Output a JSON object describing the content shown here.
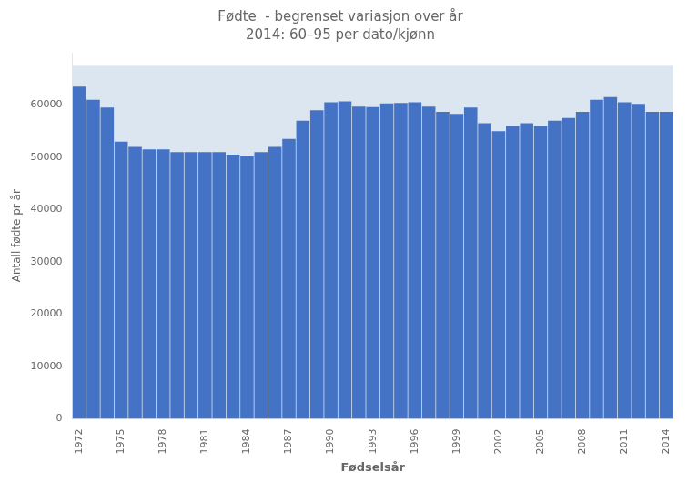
{
  "chart_data": {
    "type": "bar",
    "title": "Fødte  - begrenset variasjon over år",
    "subtitle": "2014: 60–95 per dato/kjønn",
    "x_label": "Fødselsår",
    "y_label": "Antall fødte pr år",
    "categories": [
      "1972",
      null,
      null,
      "1975",
      null,
      null,
      "1978",
      null,
      null,
      "1981",
      null,
      null,
      "1984",
      null,
      null,
      "1987",
      null,
      null,
      "1990",
      null,
      null,
      "1993",
      null,
      null,
      "1996",
      null,
      null,
      "1999",
      null,
      null,
      "2002",
      null,
      null,
      "2005",
      null,
      null,
      "2008",
      null,
      null,
      "2011",
      null,
      null,
      "2014"
    ],
    "values": [
      63500,
      61000,
      59500,
      53000,
      52000,
      51500,
      51500,
      51000,
      51000,
      51000,
      51000,
      50500,
      50200,
      51000,
      52000,
      53500,
      57000,
      59000,
      60500,
      60700,
      59700,
      59600,
      60300,
      60400,
      60500,
      59700,
      58700,
      58300,
      59500,
      56500,
      55000,
      56000,
      56500,
      56000,
      57000,
      57500,
      58700,
      61000,
      61500,
      60500,
      60200,
      58700,
      58700
    ],
    "color": "#4472C4",
    "band": {
      "from": 0,
      "to": 67500,
      "color": "#DCE6F1"
    },
    "ylim": [
      0,
      70000
    ],
    "yticks": [
      0,
      10000,
      20000,
      30000,
      40000,
      50000,
      60000
    ],
    "grid": false
  }
}
